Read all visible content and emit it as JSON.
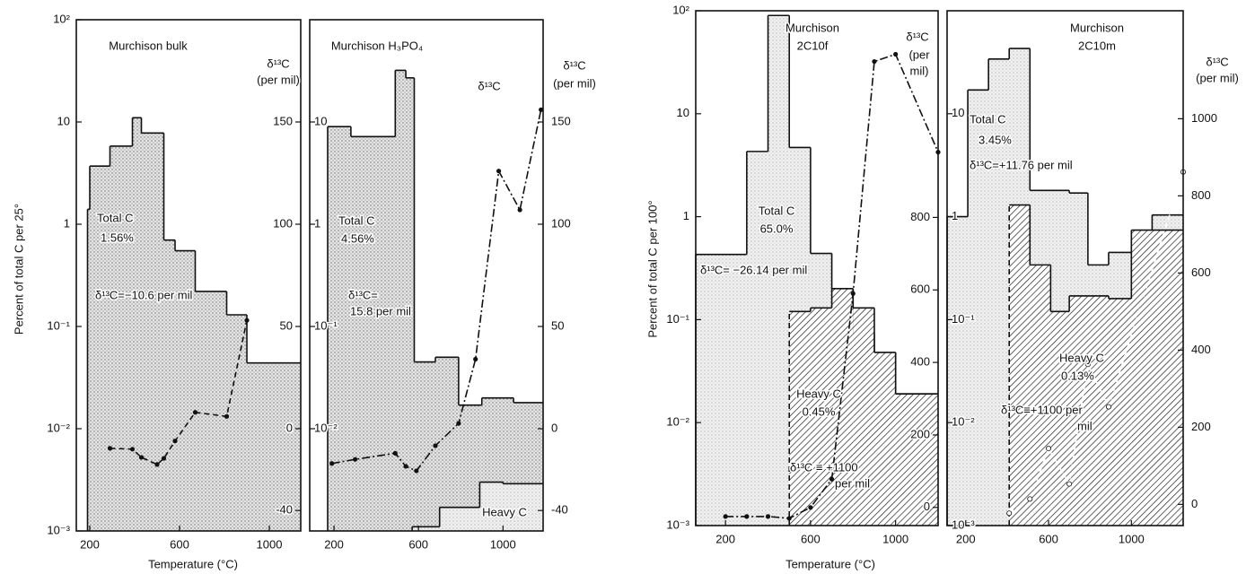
{
  "chart_data": [
    {
      "type": "histogram",
      "title": "Murchison bulk",
      "y_label": "Percent of total C per 25°",
      "x_label": "Temperature (°C)",
      "xlim": [
        140,
        1140
      ],
      "xticks": [
        200,
        600,
        1000
      ],
      "ylim": [
        0.001,
        100
      ],
      "log_y": true,
      "yticks": [
        {
          "value": 0.001,
          "label": "10⁻³"
        },
        {
          "value": 0.01,
          "label": "10⁻²"
        },
        {
          "value": 0.1,
          "label": "10⁻¹"
        },
        1,
        10,
        {
          "value": 100,
          "label": "10²"
        }
      ],
      "y2lim": [
        -50,
        200
      ],
      "y2ticks": [
        -40,
        0,
        50,
        100,
        150
      ],
      "y2_label": [
        "δ¹³C",
        "(per mil)"
      ],
      "series": [
        {
          "name": "Total C",
          "type": "histogram",
          "fill": "stipple",
          "color": "#111",
          "bins": [
            190,
            200,
            290,
            390,
            430,
            530,
            580,
            670,
            810,
            900,
            1140
          ],
          "values": [
            1.4,
            3.7,
            5.8,
            11,
            7.8,
            0.7,
            0.55,
            0.22,
            0.13,
            0.044
          ]
        },
        {
          "type": "line",
          "axis": "y2",
          "style": "dashed",
          "color": "#111",
          "x": [
            290,
            390,
            430,
            500,
            530,
            580,
            670,
            810,
            900
          ],
          "values": [
            -9.6,
            -10,
            -14,
            -17.5,
            -14.5,
            -6,
            8,
            6,
            53
          ]
        }
      ],
      "annotations": [
        "1.56%",
        "δ¹³C=−10.6 per mil"
      ]
    },
    {
      "type": "histogram",
      "title": "Murchison H₃PO₄",
      "xlim": [
        85,
        1190
      ],
      "xticks": [
        200,
        600,
        1000
      ],
      "ylim": [
        0.001,
        100
      ],
      "log_y": true,
      "yticks": [
        {
          "value": 0.01,
          "label": "10⁻²"
        },
        {
          "value": 0.1,
          "label": "10⁻¹"
        },
        1,
        10
      ],
      "y2lim": [
        -50,
        200
      ],
      "y2ticks": [
        -40,
        0,
        50,
        100,
        150
      ],
      "y2_label": [
        "δ¹³C",
        "(per mil)"
      ],
      "series": [
        {
          "name": "Total C",
          "type": "histogram",
          "fill": "stipple",
          "color": "#111",
          "bins": [
            170,
            280,
            490,
            540,
            580,
            680,
            790,
            900,
            1050,
            1190
          ],
          "values": [
            9,
            7.2,
            32,
            27,
            0.045,
            0.05,
            0.017,
            0.02,
            0.018
          ]
        },
        {
          "name": "δ¹³C",
          "type": "line",
          "axis": "y2",
          "style": "dashdot",
          "color": "#111",
          "x": [
            190,
            300,
            490,
            540,
            590,
            680,
            790,
            870,
            980,
            1080,
            1180
          ],
          "values": [
            -17,
            -15,
            -12,
            -18.4,
            -20.6,
            -8.3,
            2.6,
            34,
            126,
            107,
            156
          ]
        },
        {
          "name": "Heavy C",
          "type": "histogram",
          "fill": "stipple-light",
          "color": "#111",
          "bins": [
            570,
            700,
            890,
            1000,
            1190
          ],
          "values": [
            0.0011,
            0.0017,
            0.003,
            0.0029
          ]
        }
      ],
      "annotations": [
        "4.56%",
        "δ¹³C=",
        "15.8 per mil"
      ]
    },
    {
      "type": "histogram",
      "title": [
        "Murchison",
        "2C10f"
      ],
      "y_label": "Percent of total C per 100°",
      "x_label": "Temperature (°C)",
      "xlim": [
        60,
        1200
      ],
      "xticks": [
        200,
        600,
        1000
      ],
      "ylim": [
        0.001,
        100
      ],
      "log_y": true,
      "yticks": [
        {
          "value": 0.001,
          "label": "10⁻³"
        },
        {
          "value": 0.01,
          "label": "10⁻²"
        },
        {
          "value": 0.1,
          "label": "10⁻¹"
        },
        1,
        10,
        {
          "value": 100,
          "label": "10²"
        }
      ],
      "y2lim": [
        -50,
        1370
      ],
      "y2ticks": [
        0,
        200,
        400,
        600,
        800
      ],
      "y2_label": [
        "δ¹³C",
        "(per",
        "mil)"
      ],
      "series": [
        {
          "name": "Total C",
          "type": "histogram",
          "fill": "stipple-light",
          "color": "#111",
          "bins": [
            60,
            300,
            400,
            500,
            600,
            700,
            800,
            900,
            1000,
            1200
          ],
          "values": [
            0.43,
            4.3,
            90,
            4.7,
            0.44,
            0.2,
            0.073,
            0.048,
            0.019
          ]
        },
        {
          "name": "Heavy C",
          "type": "histogram",
          "fill": "hatch",
          "color": "#111",
          "bins": [
            500,
            600,
            700,
            800,
            900,
            1000,
            1200
          ],
          "values": [
            0.12,
            0.13,
            0.2,
            0.13,
            0.048,
            0.019
          ]
        },
        {
          "type": "line",
          "axis": "y2",
          "style": "dashdot",
          "color": "#111",
          "x": [
            200,
            300,
            400,
            500,
            600,
            700,
            800,
            900,
            1000,
            1200
          ],
          "values": [
            -25,
            -25,
            -25,
            -30,
            0,
            78,
            590,
            1230,
            1250,
            980
          ]
        }
      ],
      "annotations": [
        "65.0%",
        "δ¹³C= −26.14 per mil",
        "0.45%",
        "δ¹³C ≡ +1100",
        "per mil"
      ]
    },
    {
      "type": "histogram",
      "title": [
        "Murchison",
        "2C10m"
      ],
      "xlim": [
        110,
        1250
      ],
      "xticks": [
        200,
        600,
        1000
      ],
      "ylim": [
        0.001,
        100
      ],
      "log_y": true,
      "yticks": [
        {
          "value": 0.001,
          "label": "10⁻³"
        },
        {
          "value": 0.01,
          "label": "10⁻²"
        },
        {
          "value": 0.1,
          "label": "10⁻¹"
        },
        1,
        10
      ],
      "y2lim": [
        -55,
        1280
      ],
      "y2ticks": [
        0,
        200,
        400,
        600,
        800,
        1000
      ],
      "y2_label": [
        "δ¹³C",
        "(per mil)"
      ],
      "series": [
        {
          "name": "Total C",
          "type": "histogram",
          "fill": "stipple-light",
          "color": "#111",
          "bins": [
            110,
            210,
            310,
            410,
            510,
            700,
            790,
            890,
            1000,
            1100,
            1250
          ],
          "values": [
            1.0,
            17,
            34,
            43,
            1.8,
            1.7,
            0.34,
            0.45,
            0.6,
            1.04
          ]
        },
        {
          "name": "Heavy C",
          "type": "histogram",
          "fill": "hatch",
          "color": "#111",
          "bins": [
            410,
            510,
            610,
            700,
            890,
            1000,
            1250
          ],
          "values": [
            1.3,
            0.34,
            0.12,
            0.17,
            0.16,
            0.74
          ]
        },
        {
          "type": "line",
          "axis": "y2",
          "style": "dashed",
          "color": "#ffffff",
          "x": [
            410,
            510,
            600,
            700,
            790,
            890,
            1250
          ],
          "values": [
            -23,
            14,
            145,
            53,
            363,
            253,
            862
          ]
        }
      ],
      "annotations": [
        "3.45%",
        "δ¹³C=+11.76 per mil",
        "0.13%",
        "δ¹³C≡+1100 per",
        "mil"
      ]
    }
  ]
}
